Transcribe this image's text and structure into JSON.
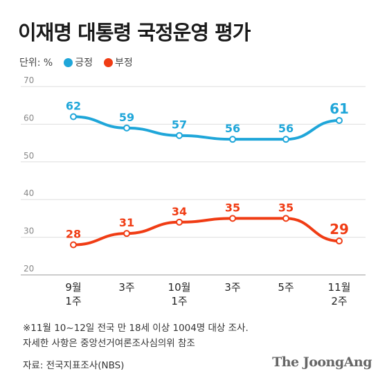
{
  "title": "이재명 대통령 국정운영 평가",
  "legend": {
    "unit": "단위: %",
    "positive": "긍정",
    "negative": "부정"
  },
  "notes": {
    "line1": "※11월 10~12일 전국 만 18세 이상 1004명 대상 조사.",
    "line2": "자세한 사항은 중앙선거여론조사심의위 참조"
  },
  "source": "자료: 전국지표조사(NBS)",
  "brand": "The JoongAng",
  "colors": {
    "positive": "#1fa6d9",
    "negative": "#f03c14",
    "grid": "#dddddd",
    "axis": "#999999"
  },
  "chart_data": {
    "type": "line",
    "categories": [
      "9월\n1주",
      "3주",
      "10월\n1주",
      "3주",
      "5주",
      "11월\n2주"
    ],
    "series": [
      {
        "name": "긍정",
        "values": [
          62,
          59,
          57,
          56,
          56,
          61
        ]
      },
      {
        "name": "부정",
        "values": [
          28,
          31,
          34,
          35,
          35,
          29
        ]
      }
    ],
    "ylim": [
      20,
      70
    ],
    "yticks": [
      20,
      30,
      40,
      50,
      60,
      70
    ],
    "grid": true,
    "legend": "top-left",
    "highlight_last": true
  }
}
